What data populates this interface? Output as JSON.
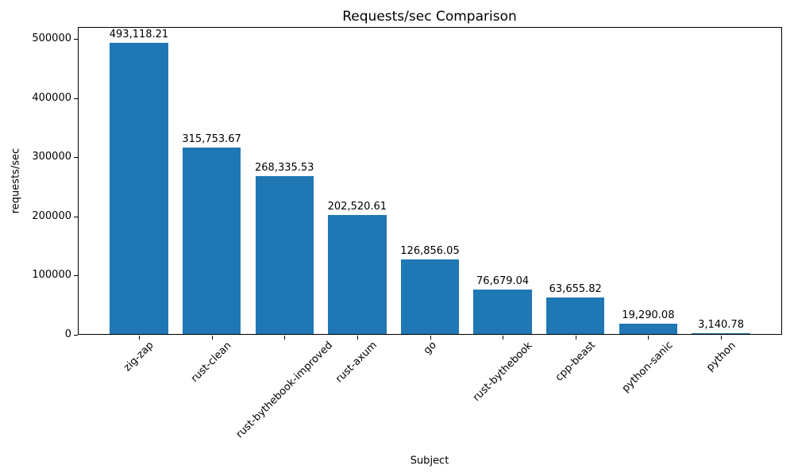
{
  "chart_data": {
    "type": "bar",
    "title": "Requests/sec Comparison",
    "xlabel": "Subject",
    "ylabel": "requests/sec",
    "categories": [
      "zig-zap",
      "rust-clean",
      "rust-bythebook-improved",
      "rust-axum",
      "go",
      "rust-bythebook",
      "cpp-beast",
      "python-sanic",
      "python"
    ],
    "values": [
      493118.21,
      315753.67,
      268335.53,
      202520.61,
      126856.05,
      76679.04,
      63655.82,
      19290.08,
      3140.78
    ],
    "value_labels": [
      "493,118.21",
      "315,753.67",
      "268,335.53",
      "202,520.61",
      "126,856.05",
      "76,679.04",
      "63,655.82",
      "19,290.08",
      "3,140.78"
    ],
    "ytick_values": [
      0,
      100000,
      200000,
      300000,
      400000,
      500000
    ],
    "ytick_labels": [
      "0",
      "100000",
      "200000",
      "300000",
      "400000",
      "500000"
    ],
    "ylim": [
      0,
      520000
    ],
    "bar_color": "#1f77b4",
    "axis_color": "#000000",
    "text_color": "#000000",
    "grid": false,
    "legend": null,
    "bar_width_fraction": 0.8,
    "xtick_rotation_deg": 45
  }
}
